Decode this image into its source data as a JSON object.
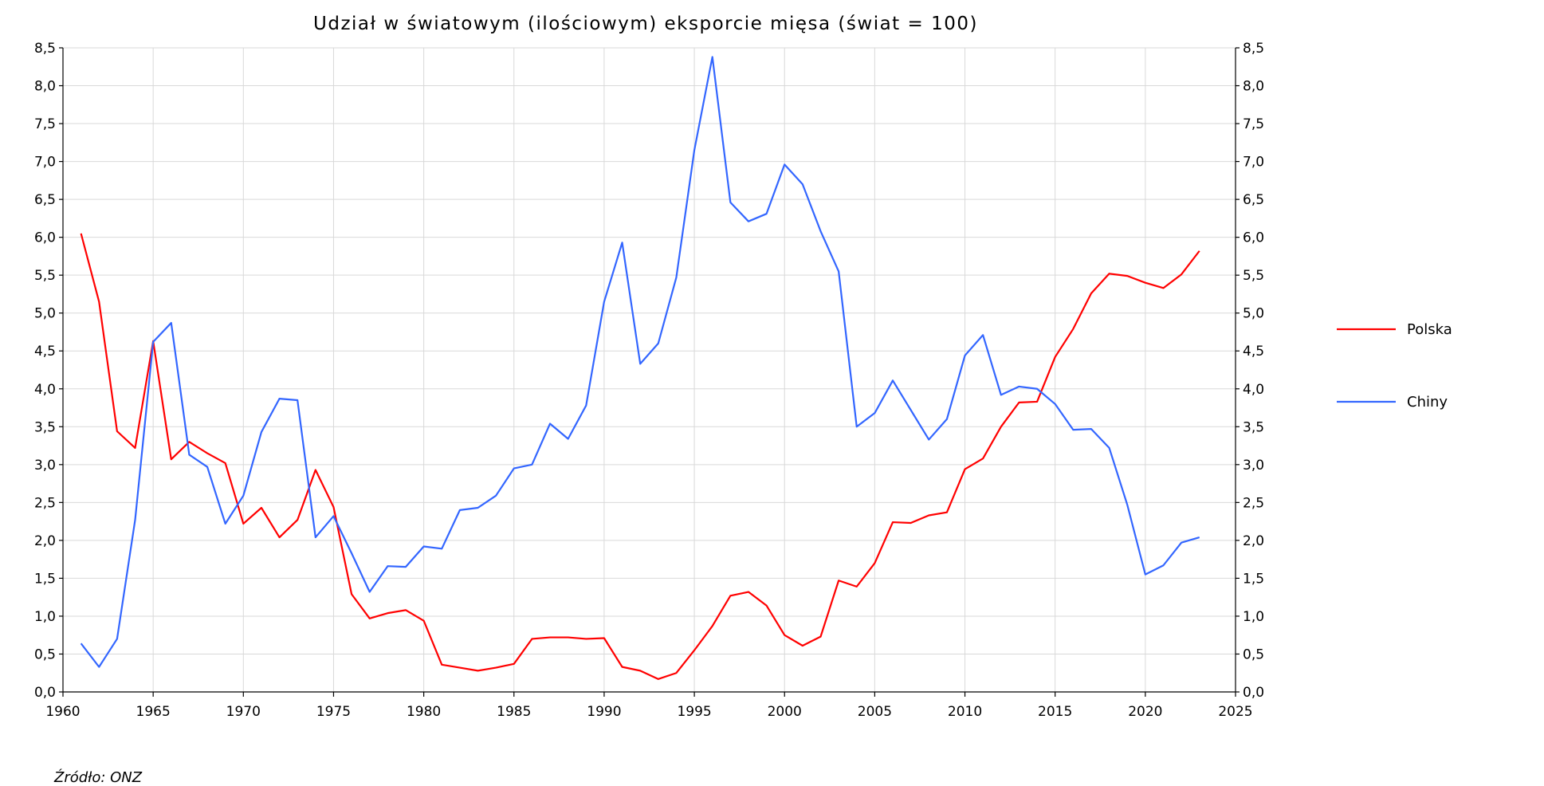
{
  "chart_data": {
    "type": "line",
    "title": "Udział w światowym (ilościowym) eksporcie mięsa (świat = 100)",
    "source": "Źródło: ONZ",
    "xlim": [
      1960,
      2025
    ],
    "ylim": [
      0,
      8.5
    ],
    "x_ticks": [
      "1960",
      "1965",
      "1970",
      "1975",
      "1980",
      "1985",
      "1990",
      "1995",
      "2000",
      "2005",
      "2010",
      "2015",
      "2020",
      "2025"
    ],
    "y_ticks": [
      "0,0",
      "0,5",
      "1,0",
      "1,5",
      "2,0",
      "2,5",
      "3,0",
      "3,5",
      "4,0",
      "4,5",
      "5,0",
      "5,5",
      "6,0",
      "6,5",
      "7,0",
      "7,5",
      "8,0",
      "8,5"
    ],
    "grid": true,
    "legend_position": "right",
    "x": [
      1961,
      1962,
      1963,
      1964,
      1965,
      1966,
      1967,
      1968,
      1969,
      1970,
      1971,
      1972,
      1973,
      1974,
      1975,
      1976,
      1977,
      1978,
      1979,
      1980,
      1981,
      1982,
      1983,
      1984,
      1985,
      1986,
      1987,
      1988,
      1989,
      1990,
      1991,
      1992,
      1993,
      1994,
      1995,
      1996,
      1997,
      1998,
      1999,
      2000,
      2001,
      2002,
      2003,
      2004,
      2005,
      2006,
      2007,
      2008,
      2009,
      2010,
      2011,
      2012,
      2013,
      2014,
      2015,
      2016,
      2017,
      2018,
      2019,
      2020,
      2021,
      2022,
      2023
    ],
    "series": [
      {
        "name": "Polska",
        "color": "#ff0000",
        "values": [
          6.05,
          5.15,
          3.44,
          3.22,
          4.63,
          3.07,
          3.3,
          3.15,
          3.02,
          2.22,
          2.43,
          2.04,
          2.27,
          2.93,
          2.44,
          1.29,
          0.97,
          1.04,
          1.08,
          0.94,
          0.36,
          0.32,
          0.28,
          0.32,
          0.37,
          0.7,
          0.72,
          0.72,
          0.7,
          0.71,
          0.33,
          0.28,
          0.17,
          0.25,
          0.55,
          0.87,
          1.27,
          1.32,
          1.14,
          0.75,
          0.61,
          0.73,
          1.47,
          1.39,
          1.7,
          2.24,
          2.23,
          2.33,
          2.37,
          2.94,
          3.08,
          3.5,
          3.82,
          3.83,
          4.42,
          4.79,
          5.26,
          5.52,
          5.49,
          5.4,
          5.33,
          5.51,
          5.82
        ]
      },
      {
        "name": "Chiny",
        "color": "#3366ff",
        "values": [
          0.64,
          0.33,
          0.7,
          2.27,
          4.62,
          4.87,
          3.13,
          2.97,
          2.22,
          2.59,
          3.43,
          3.87,
          3.85,
          2.04,
          2.32,
          1.83,
          1.32,
          1.66,
          1.65,
          1.92,
          1.89,
          2.4,
          2.43,
          2.59,
          2.95,
          3.0,
          3.54,
          3.34,
          3.78,
          5.15,
          5.93,
          4.33,
          4.6,
          5.47,
          7.15,
          8.38,
          6.46,
          6.21,
          6.31,
          6.96,
          6.7,
          6.08,
          5.55,
          3.5,
          3.68,
          4.11,
          3.72,
          3.33,
          3.6,
          4.44,
          4.71,
          3.92,
          4.03,
          4.0,
          3.8,
          3.46,
          3.47,
          3.22,
          2.47,
          1.55,
          1.67,
          1.97,
          2.04
        ]
      }
    ]
  }
}
